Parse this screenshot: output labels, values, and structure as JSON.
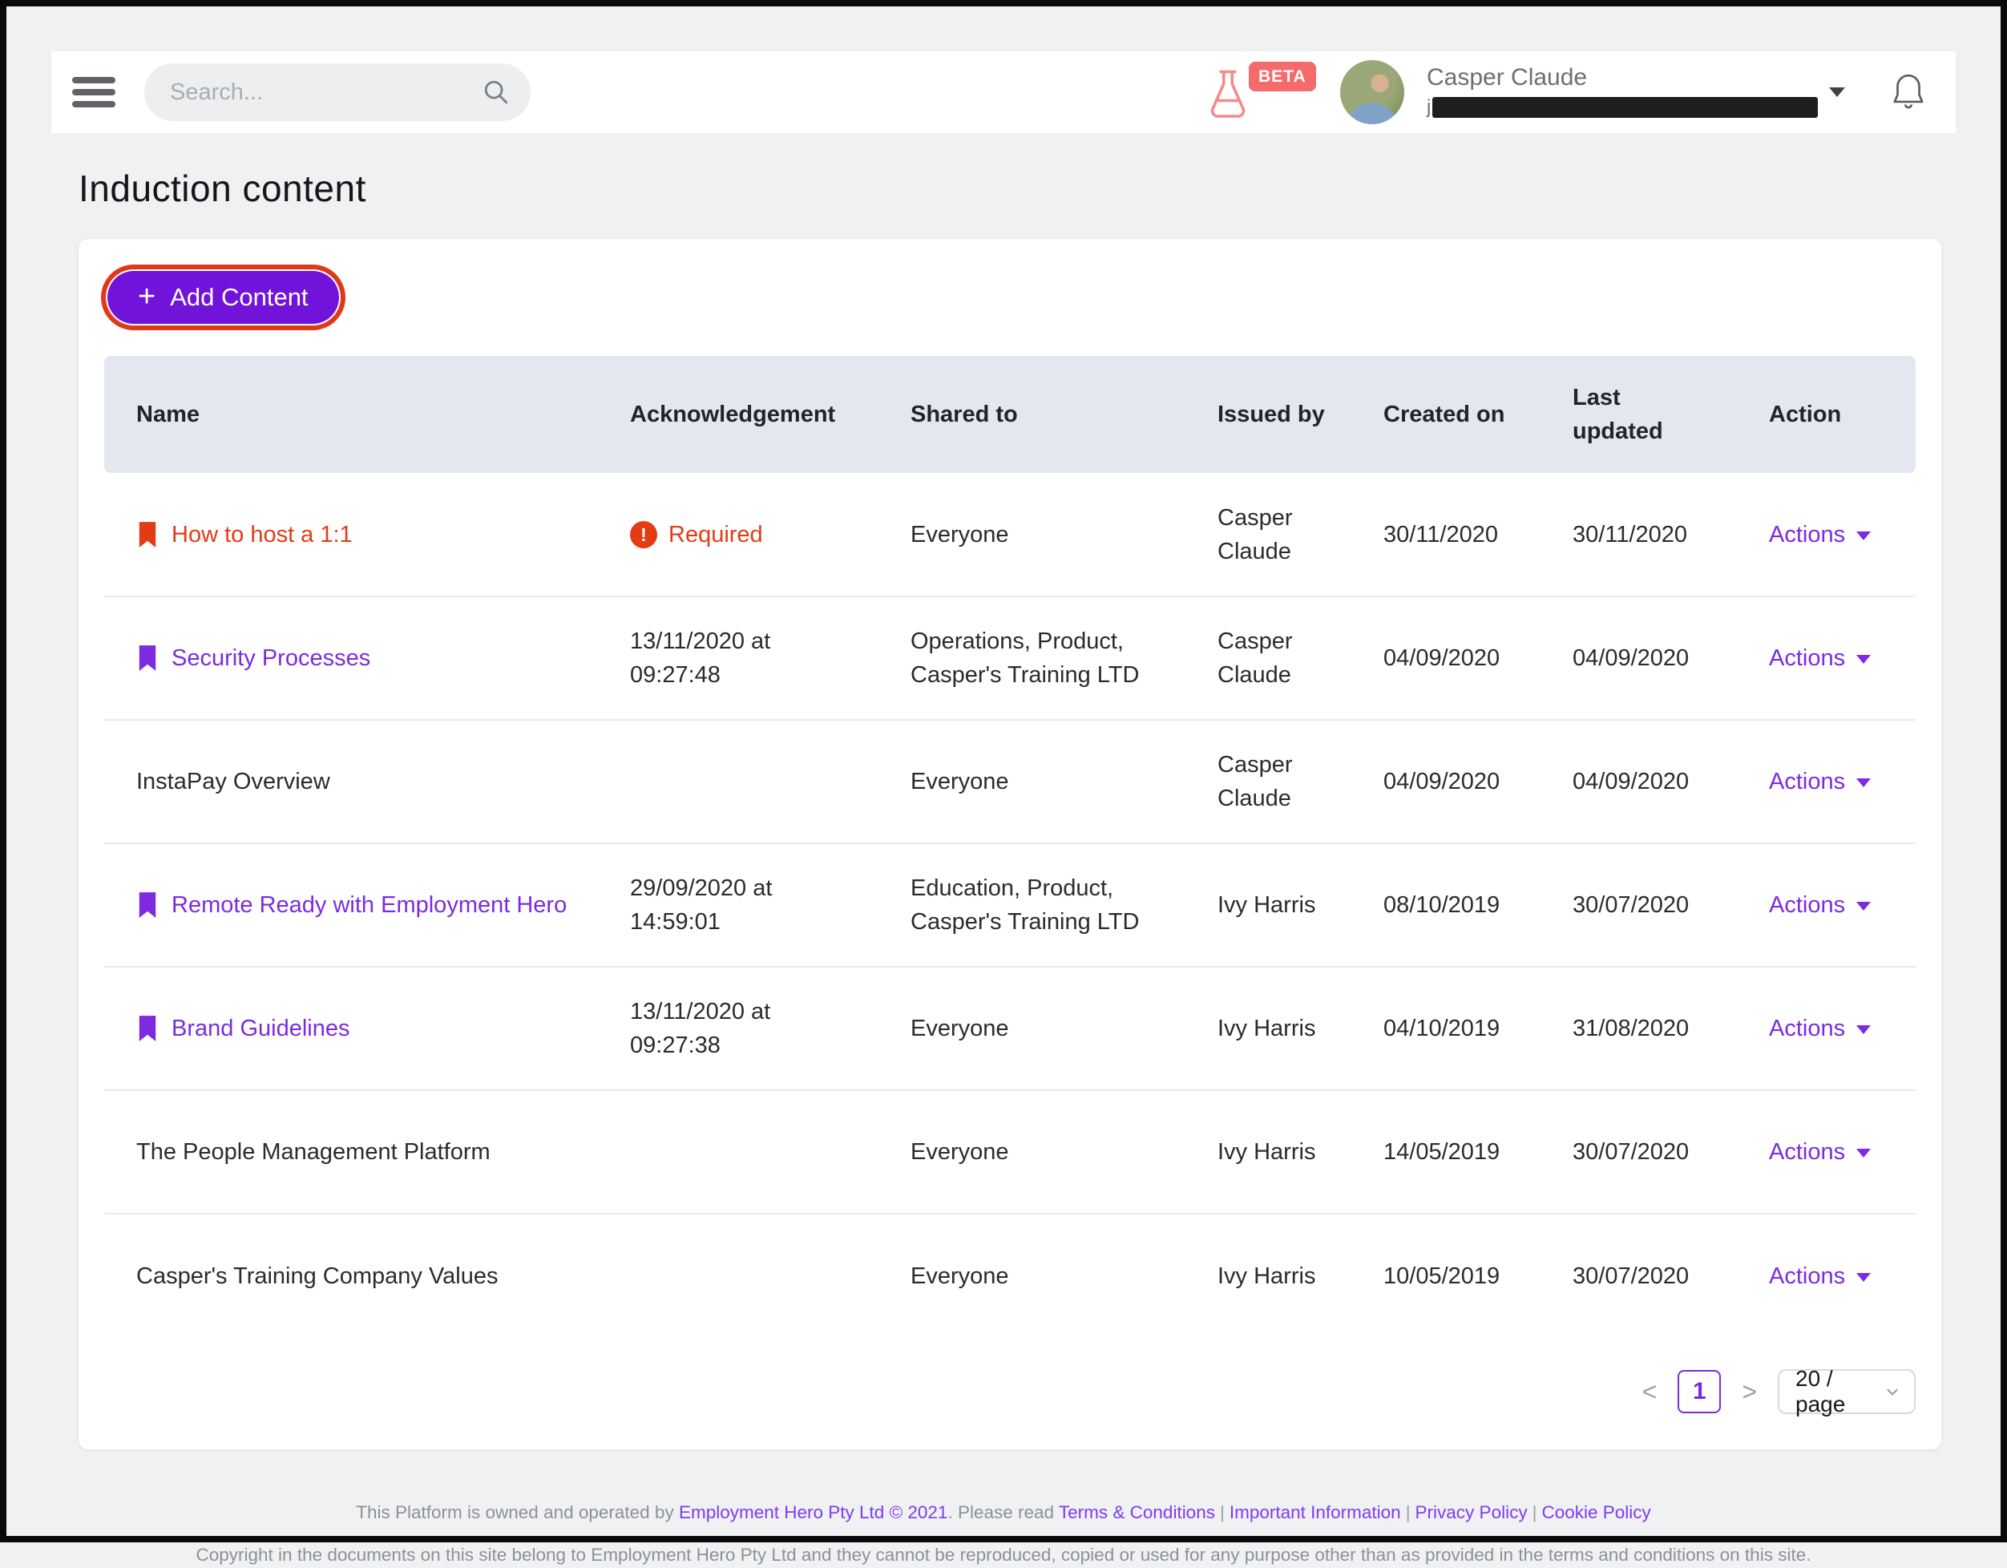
{
  "colors": {
    "accent_purple": "#7C2BE0",
    "button_purple": "#7113D8",
    "danger_red": "#E23C15",
    "beta_red": "#F56B6B",
    "ring_red": "#E0391A",
    "header_bg": "#E3E8F0",
    "footer_link_purple": "#7E3BF2"
  },
  "topbar": {
    "search_placeholder": "Search...",
    "beta_label": "BETA",
    "user_name": "Casper Claude",
    "redacted_visible_char": "j"
  },
  "page_title": "Induction content",
  "toolbar": {
    "add_content_label": "Add Content",
    "plus_glyph": "+"
  },
  "table": {
    "headers": [
      "Name",
      "Acknowledgement",
      "Shared to",
      "Issued by",
      "Created on",
      "Last updated",
      "Action"
    ],
    "actions_label": "Actions",
    "rows": [
      {
        "name": "How to host a 1:1",
        "name_style": "danger",
        "bookmark": true,
        "ack_type": "required",
        "ack": "Required",
        "shared_to": "Everyone",
        "issued_by": "Casper Claude",
        "created_on": "30/11/2020",
        "last_updated": "30/11/2020"
      },
      {
        "name": "Security Processes",
        "name_style": "link",
        "bookmark": true,
        "ack_type": "date",
        "ack": "13/11/2020 at 09:27:48",
        "shared_to": "Operations, Product, Casper's Training LTD",
        "issued_by": "Casper Claude",
        "created_on": "04/09/2020",
        "last_updated": "04/09/2020"
      },
      {
        "name": "InstaPay Overview",
        "name_style": "plain",
        "bookmark": false,
        "ack_type": "none",
        "ack": "",
        "shared_to": "Everyone",
        "issued_by": "Casper Claude",
        "created_on": "04/09/2020",
        "last_updated": "04/09/2020"
      },
      {
        "name": "Remote Ready with Employment Hero",
        "name_style": "link",
        "bookmark": true,
        "ack_type": "date",
        "ack": "29/09/2020 at 14:59:01",
        "shared_to": "Education, Product, Casper's Training LTD",
        "issued_by": "Ivy Harris",
        "created_on": "08/10/2019",
        "last_updated": "30/07/2020"
      },
      {
        "name": "Brand Guidelines",
        "name_style": "link",
        "bookmark": true,
        "ack_type": "date",
        "ack": "13/11/2020 at 09:27:38",
        "shared_to": "Everyone",
        "issued_by": "Ivy Harris",
        "created_on": "04/10/2019",
        "last_updated": "31/08/2020"
      },
      {
        "name": "The People Management Platform",
        "name_style": "plain",
        "bookmark": false,
        "ack_type": "none",
        "ack": "",
        "shared_to": "Everyone",
        "issued_by": "Ivy Harris",
        "created_on": "14/05/2019",
        "last_updated": "30/07/2020"
      },
      {
        "name": "Casper's Training Company Values",
        "name_style": "plain",
        "bookmark": false,
        "ack_type": "none",
        "ack": "",
        "shared_to": "Everyone",
        "issued_by": "Ivy Harris",
        "created_on": "10/05/2019",
        "last_updated": "30/07/2020"
      }
    ]
  },
  "pagination": {
    "prev_label": "<",
    "current_page": "1",
    "next_label": ">",
    "page_size_label": "20 / page"
  },
  "footer": {
    "line1_prefix": "This Platform is owned and operated by ",
    "line1_company": "Employment Hero Pty Ltd © 2021",
    "line1_mid": ". Please read ",
    "separator": "|",
    "links": [
      "Terms & Conditions",
      "Important Information",
      "Privacy Policy",
      "Cookie Policy"
    ],
    "line2": "Copyright in the documents on this site belong to Employment Hero Pty Ltd and they cannot be reproduced, copied or used for any purpose other than as provided in the terms and conditions on this site."
  }
}
